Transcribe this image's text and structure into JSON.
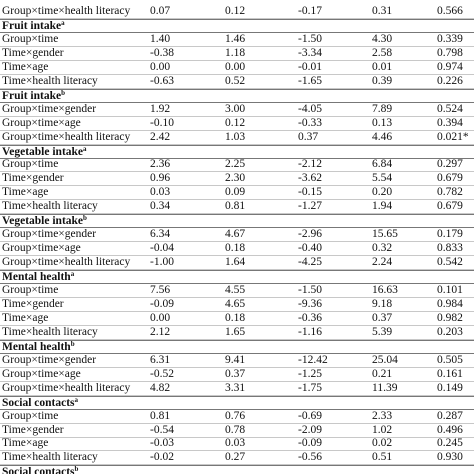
{
  "table": {
    "lead_rows": [
      [
        "Group×time×health literacy",
        "0.07",
        "0.12",
        "-0.17",
        "0.31",
        "0.566"
      ]
    ],
    "sections": [
      {
        "title": "Fruit intake",
        "note": "a",
        "rows": [
          [
            "Group×time",
            "1.40",
            "1.46",
            "-1.50",
            "4.30",
            "0.339"
          ],
          [
            "Time×gender",
            "-0.38",
            "1.18",
            "-3.34",
            "2.58",
            "0.798"
          ],
          [
            "Time×age",
            "0.00",
            "0.00",
            "-0.01",
            "0.01",
            "0.974"
          ],
          [
            "Time×health literacy",
            "-0.63",
            "0.52",
            "-1.65",
            "0.39",
            "0.226"
          ]
        ]
      },
      {
        "title": "Fruit intake",
        "note": "b",
        "rows": [
          [
            "Group×time×gender",
            "1.92",
            "3.00",
            "-4.05",
            "7.89",
            "0.524"
          ],
          [
            "Group×time×age",
            "-0.10",
            "0.12",
            "-0.33",
            "0.13",
            "0.394"
          ],
          [
            "Group×time×health literacy",
            "2.42",
            "1.03",
            "0.37",
            "4.46",
            "0.021*"
          ]
        ]
      },
      {
        "title": "Vegetable intake",
        "note": "a",
        "rows": [
          [
            "Group×time",
            "2.36",
            "2.25",
            "-2.12",
            "6.84",
            "0.297"
          ],
          [
            "Time×gender",
            "0.96",
            "2.30",
            "-3.62",
            "5.54",
            "0.679"
          ],
          [
            "Time×age",
            "0.03",
            "0.09",
            "-0.15",
            "0.20",
            "0.782"
          ],
          [
            "Time×health literacy",
            "0.34",
            "0.81",
            "-1.27",
            "1.94",
            "0.679"
          ]
        ]
      },
      {
        "title": "Vegetable intake",
        "note": "b",
        "rows": [
          [
            "Group×time×gender",
            "6.34",
            "4.67",
            "-2.96",
            "15.65",
            "0.179"
          ],
          [
            "Group×time×age",
            "-0.04",
            "0.18",
            "-0.40",
            "0.32",
            "0.833"
          ],
          [
            "Group×time×health literacy",
            "-1.00",
            "1.64",
            "-4.25",
            "2.24",
            "0.542"
          ]
        ]
      },
      {
        "title": "Mental health",
        "note": "a",
        "rows": [
          [
            "Group×time",
            "7.56",
            "4.55",
            "-1.50",
            "16.63",
            "0.101"
          ],
          [
            "Time×gender",
            "-0.09",
            "4.65",
            "-9.36",
            "9.18",
            "0.984"
          ],
          [
            "Time×age",
            "0.00",
            "0.18",
            "-0.36",
            "0.37",
            "0.982"
          ],
          [
            "Time×health literacy",
            "2.12",
            "1.65",
            "-1.16",
            "5.39",
            "0.203"
          ]
        ]
      },
      {
        "title": "Mental health",
        "note": "b",
        "rows": [
          [
            "Group×time×gender",
            "6.31",
            "9.41",
            "-12.42",
            "25.04",
            "0.505"
          ],
          [
            "Group×time×age",
            "-0.52",
            "0.37",
            "-1.25",
            "0.21",
            "0.161"
          ],
          [
            "Group×time×health literacy",
            "4.82",
            "3.31",
            "-1.75",
            "11.39",
            "0.149"
          ]
        ]
      },
      {
        "title": "Social contacts",
        "note": "a",
        "rows": [
          [
            "Group×time",
            "0.81",
            "0.76",
            "-0.69",
            "2.33",
            "0.287"
          ],
          [
            "Time×gender",
            "-0.54",
            "0.78",
            "-2.09",
            "1.02",
            "0.496"
          ],
          [
            "Time×age",
            "-0.03",
            "0.03",
            "-0.09",
            "0.02",
            "0.245"
          ],
          [
            "Time×health literacy",
            "-0.02",
            "0.27",
            "-0.56",
            "0.51",
            "0.930"
          ]
        ]
      },
      {
        "title": "Social contacts",
        "note": "b",
        "rows": []
      }
    ]
  }
}
